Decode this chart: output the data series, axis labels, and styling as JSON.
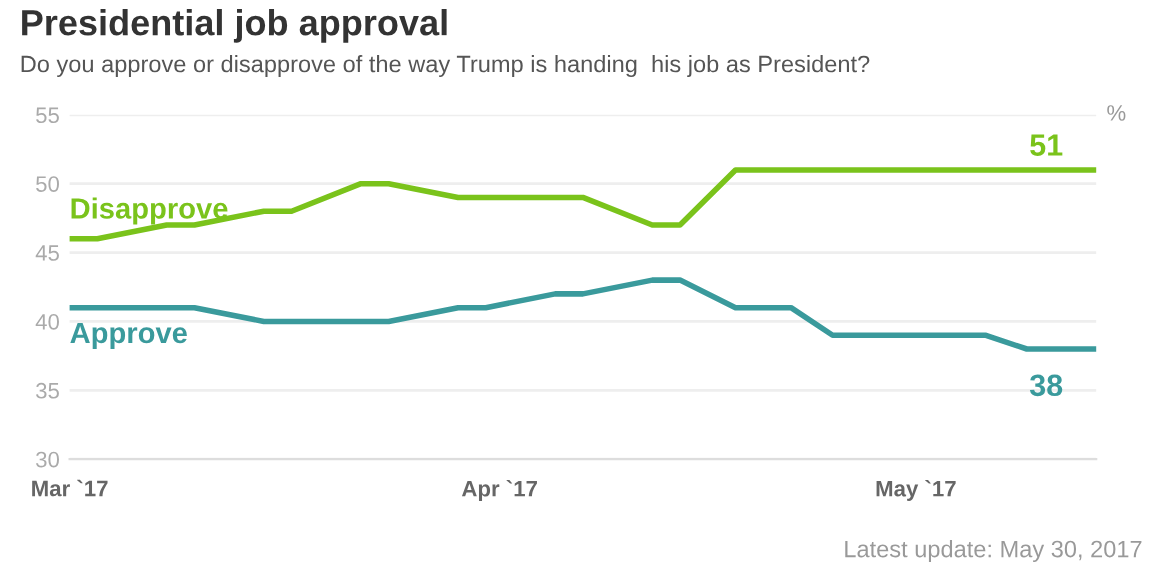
{
  "chart_data": {
    "type": "line",
    "title": "Presidential job approval",
    "subtitle": "Do you approve or disapprove of the way Trump is handing  his job as President?",
    "ylabel": "%",
    "series": [
      {
        "name": "Disapprove",
        "color": "#7ac31b",
        "x": [
          "2017-03-01",
          "2017-03-03",
          "2017-03-08",
          "2017-03-10",
          "2017-03-15",
          "2017-03-17",
          "2017-03-22",
          "2017-03-24",
          "2017-03-29",
          "2017-04-05",
          "2017-04-07",
          "2017-04-12",
          "2017-04-14",
          "2017-04-18",
          "2017-05-14"
        ],
        "values": [
          46,
          46,
          47,
          47,
          48,
          48,
          50,
          50,
          49,
          49,
          49,
          47,
          47,
          51,
          51
        ],
        "value_labels": [
          null,
          null,
          null,
          null,
          null,
          null,
          null,
          null,
          null,
          null,
          null,
          null,
          null,
          null,
          "51"
        ]
      },
      {
        "name": "Approve",
        "color": "#3a9a9c",
        "x": [
          "2017-03-01",
          "2017-03-10",
          "2017-03-15",
          "2017-03-24",
          "2017-03-29",
          "2017-03-31",
          "2017-04-05",
          "2017-04-07",
          "2017-04-12",
          "2017-04-14",
          "2017-04-18",
          "2017-04-22",
          "2017-04-25",
          "2017-05-06",
          "2017-05-09",
          "2017-05-14"
        ],
        "values": [
          41,
          41,
          40,
          40,
          41,
          41,
          42,
          42,
          43,
          43,
          41,
          41,
          39,
          39,
          38,
          38
        ],
        "value_labels": [
          null,
          null,
          null,
          null,
          null,
          null,
          null,
          null,
          null,
          null,
          null,
          null,
          null,
          null,
          null,
          "38"
        ]
      }
    ],
    "xlim": [
      "2017-03-01",
      "2017-05-14"
    ],
    "xticks": [
      {
        "value": "2017-03-01",
        "label": "Mar `17"
      },
      {
        "value": "2017-04-01",
        "label": "Apr `17"
      },
      {
        "value": "2017-05-01",
        "label": "May `17"
      }
    ],
    "ylim": [
      30,
      55
    ],
    "yticks": [
      30,
      35,
      40,
      45,
      50,
      55
    ],
    "grid": "y",
    "legend": false,
    "marker": "none",
    "line_style": "solid",
    "annotations": [
      "Latest update: May 30, 2017"
    ]
  }
}
